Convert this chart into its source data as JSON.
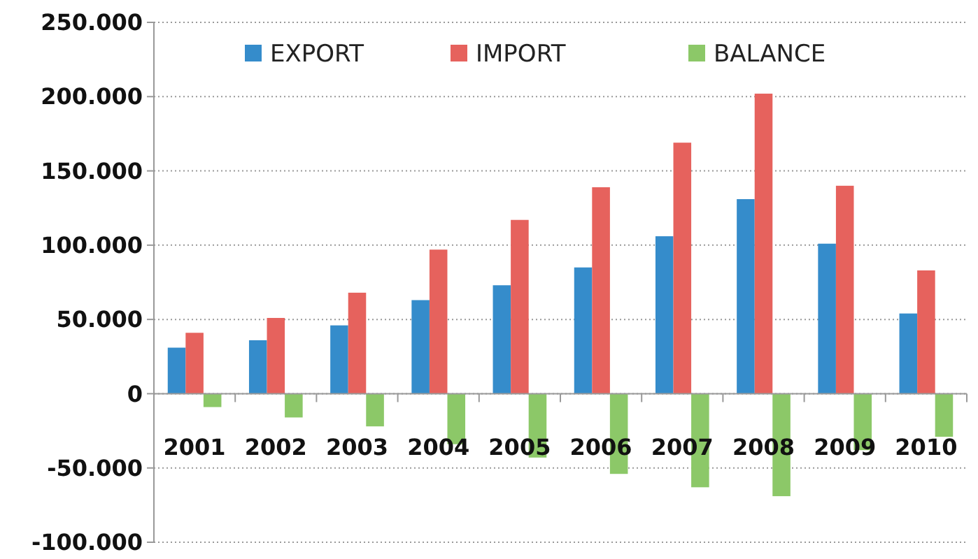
{
  "chart_data": {
    "type": "bar",
    "categories": [
      "2001",
      "2002",
      "2003",
      "2004",
      "2005",
      "2006",
      "2007",
      "2008",
      "2009",
      "2010"
    ],
    "series": [
      {
        "name": "EXPORT",
        "color": "#358ccb",
        "values": [
          31000,
          36000,
          46000,
          63000,
          73000,
          85000,
          106000,
          131000,
          101000,
          54000
        ]
      },
      {
        "name": "IMPORT",
        "color": "#e6625d",
        "values": [
          41000,
          51000,
          68000,
          97000,
          117000,
          139000,
          169000,
          202000,
          140000,
          83000
        ]
      },
      {
        "name": "BALANCE",
        "color": "#8cc868",
        "values": [
          -9000,
          -16000,
          -22000,
          -34000,
          -43000,
          -54000,
          -63000,
          -69000,
          -38000,
          -29000
        ]
      }
    ],
    "ylim": [
      -100000,
      250000
    ],
    "yticks": [
      {
        "value": -100000,
        "label": "-100.000"
      },
      {
        "value": -50000,
        "label": "-50.000"
      },
      {
        "value": 0,
        "label": "0"
      },
      {
        "value": 50000,
        "label": "50.000"
      },
      {
        "value": 100000,
        "label": "100.000"
      },
      {
        "value": 150000,
        "label": "150.000"
      },
      {
        "value": 200000,
        "label": "200.000"
      },
      {
        "value": 250000,
        "label": "250.000"
      }
    ],
    "grid": "y",
    "legend": "top"
  }
}
